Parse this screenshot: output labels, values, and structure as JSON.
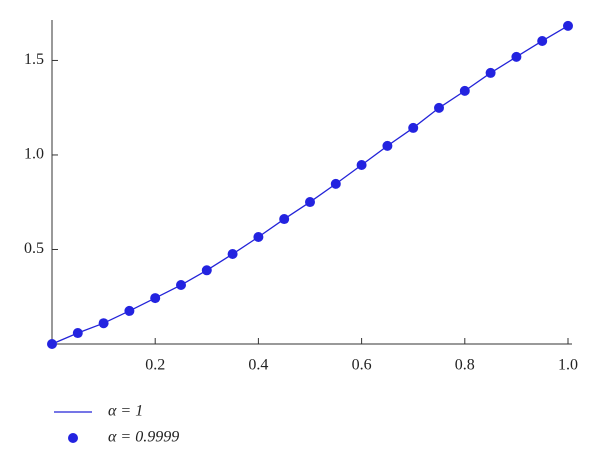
{
  "chart_data": {
    "type": "line",
    "x": [
      0,
      0.05,
      0.1,
      0.15,
      0.2,
      0.25,
      0.3,
      0.35,
      0.4,
      0.45,
      0.5,
      0.55,
      0.6,
      0.65,
      0.7,
      0.75,
      0.8,
      0.85,
      0.9,
      0.95,
      1
    ],
    "series": [
      {
        "name": "α = 1",
        "type": "line",
        "color": "#2323d8",
        "values": [
          0,
          0.058,
          0.11,
          0.175,
          0.243,
          0.312,
          0.39,
          0.476,
          0.566,
          0.661,
          0.751,
          0.847,
          0.947,
          1.048,
          1.143,
          1.249,
          1.339,
          1.434,
          1.519,
          1.603,
          1.683
        ]
      },
      {
        "name": "α = 0.9999",
        "type": "scatter",
        "color": "#2323e0",
        "values": [
          0,
          0.058,
          0.11,
          0.175,
          0.243,
          0.312,
          0.39,
          0.476,
          0.566,
          0.661,
          0.751,
          0.847,
          0.947,
          1.048,
          1.143,
          1.249,
          1.339,
          1.434,
          1.519,
          1.603,
          1.683
        ]
      }
    ],
    "xlim": [
      0,
      1
    ],
    "ylim": [
      0,
      1.714
    ],
    "xticks": [
      0.2,
      0.4,
      0.6,
      0.8,
      {
        "value": 1,
        "label": "1.0"
      }
    ],
    "yticks": [
      0.5,
      {
        "value": 1,
        "label": "1.0"
      },
      1.5
    ],
    "legend": "bottom-left"
  }
}
